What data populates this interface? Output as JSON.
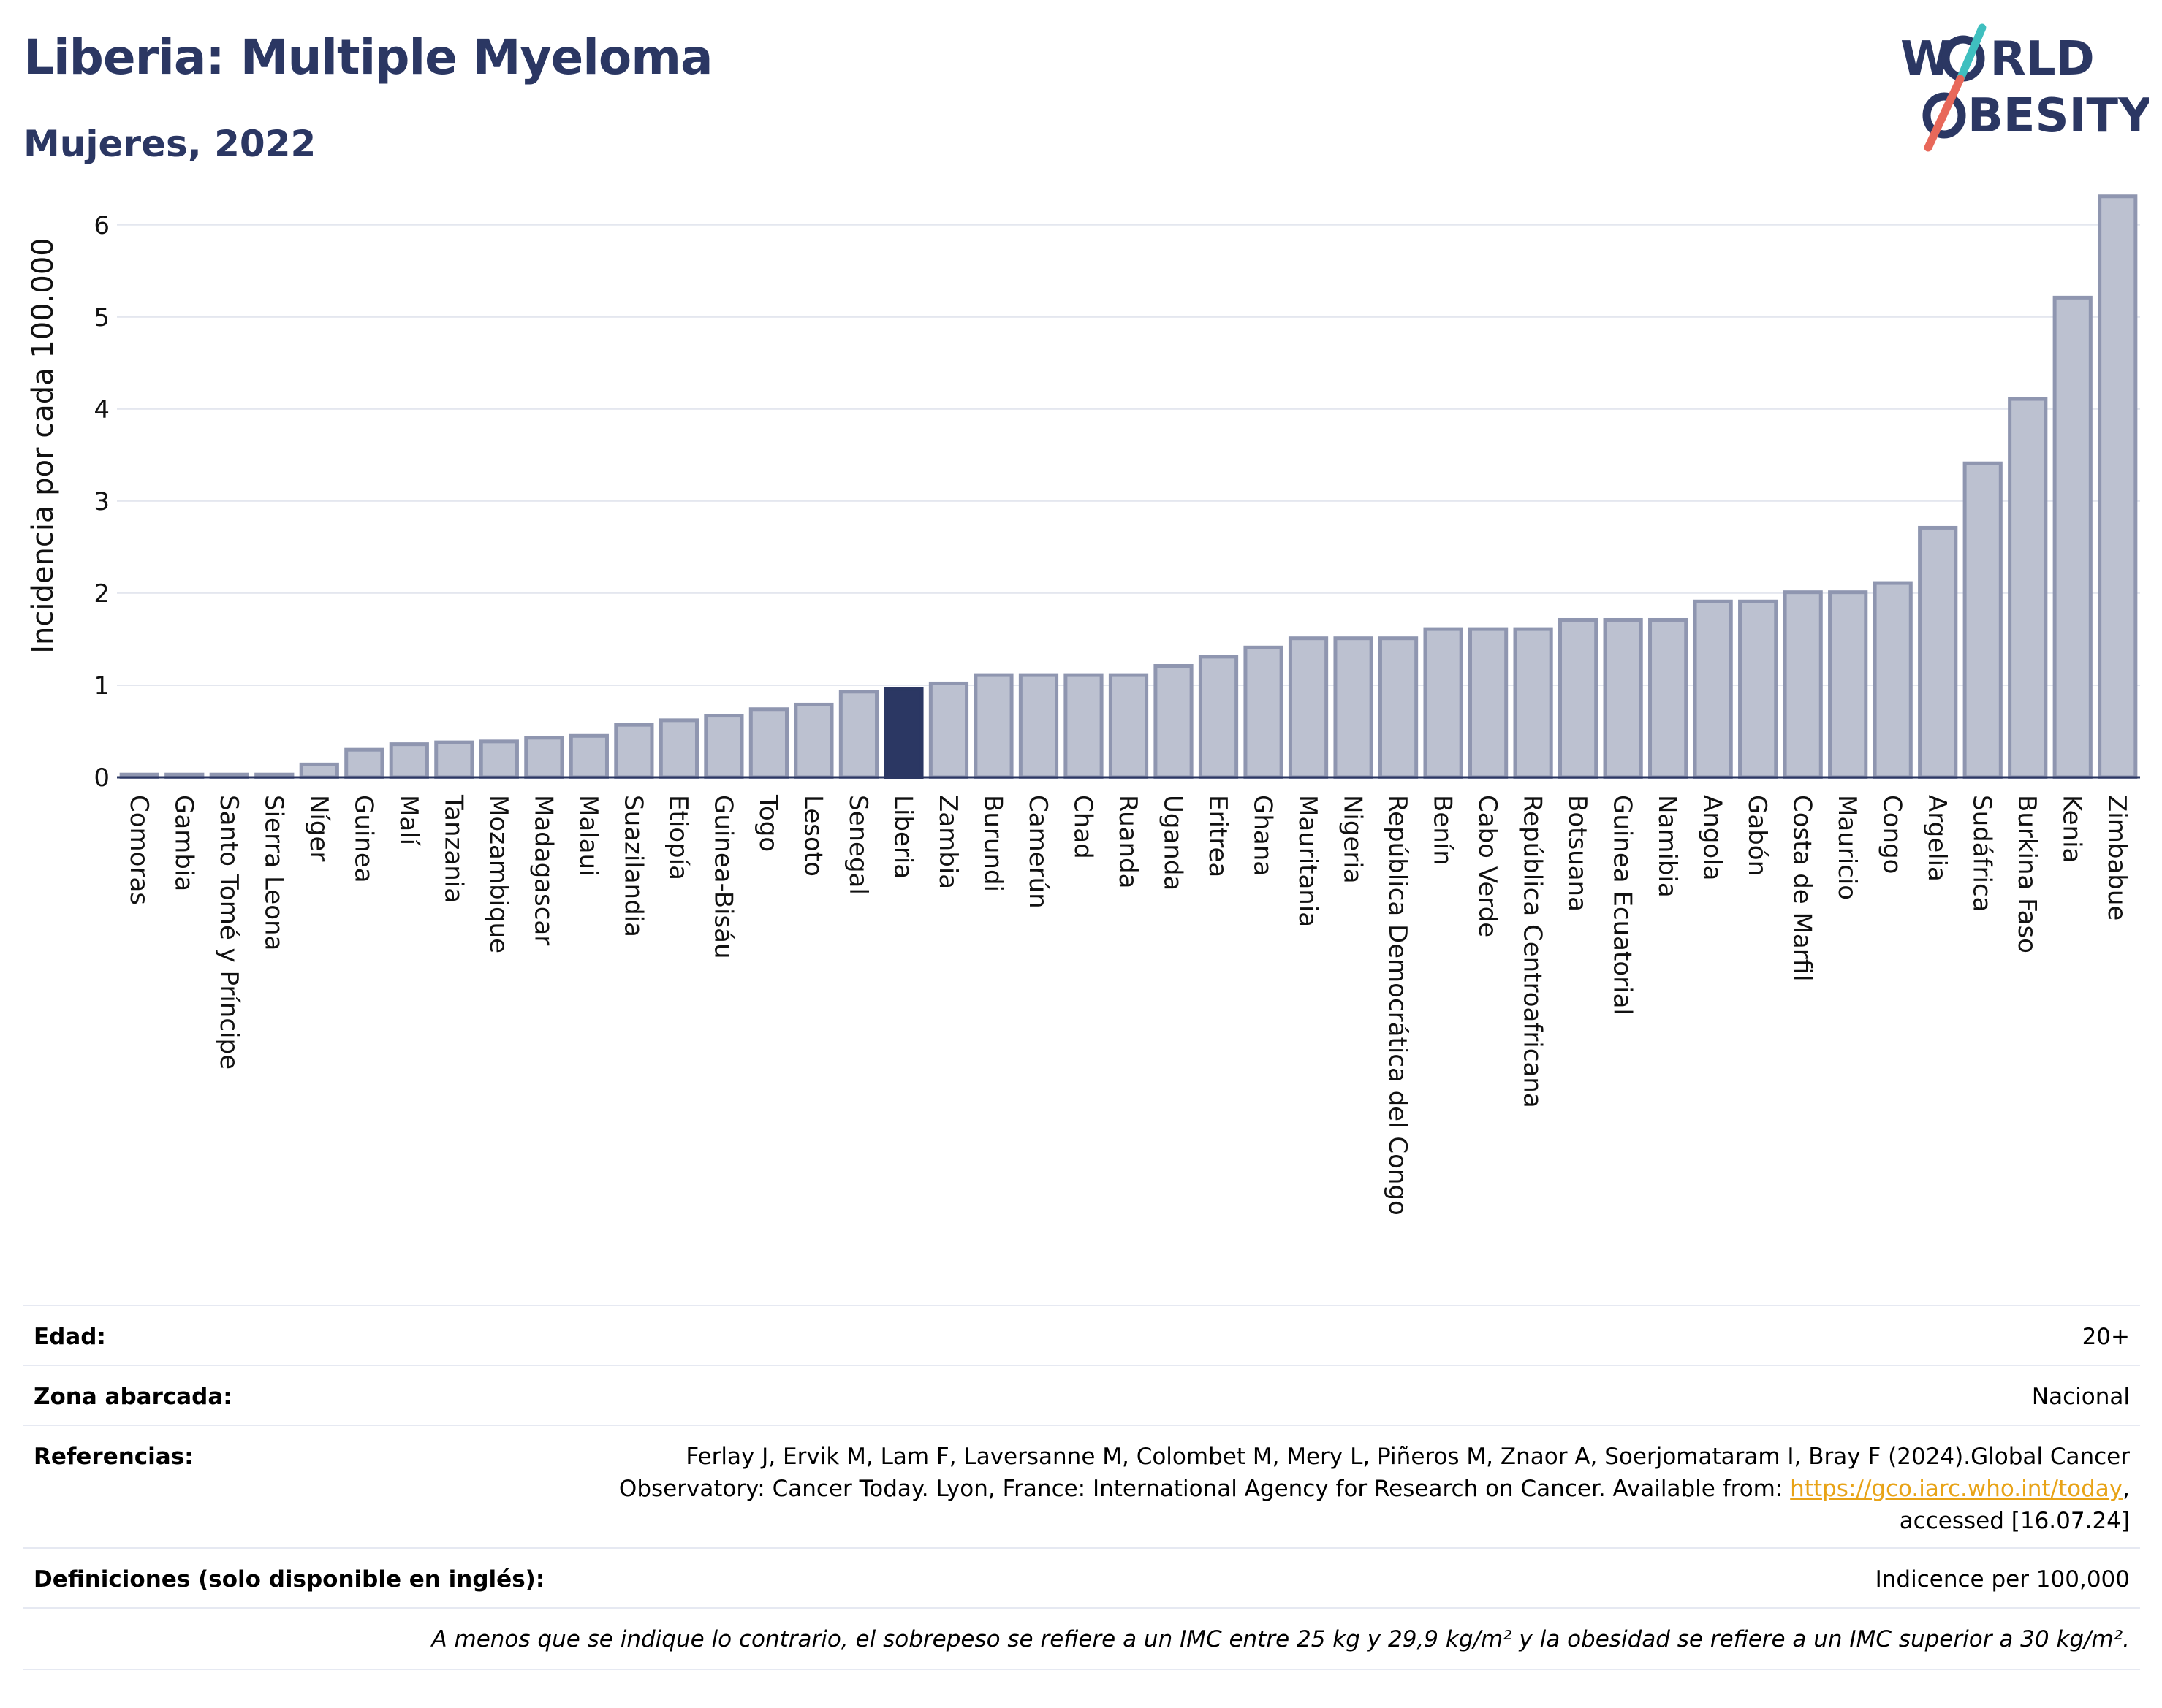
{
  "header": {
    "title": "Liberia: Multiple Myeloma",
    "subtitle": "Mujeres, 2022"
  },
  "logo": {
    "line1_a": "W",
    "line1_b": "RLD",
    "line2_b": "BESITY",
    "colors": {
      "text": "#2b3763",
      "slash_top": "#3fbfbf",
      "slash_bottom": "#e8685a"
    }
  },
  "chart_data": {
    "type": "bar",
    "ylabel": "Incidencia por cada 100.000",
    "xlabel": "",
    "ylim": [
      0,
      6.3
    ],
    "yticks": [
      0,
      1,
      2,
      3,
      4,
      5,
      6
    ],
    "grid": true,
    "highlight": "Liberia",
    "colors": {
      "bar": "#bcc1d0",
      "bar_edge": "#8f96b0",
      "highlight": "#2b3763"
    },
    "categories": [
      "Comoras",
      "Gambia",
      "Santo Tomé y Príncipe",
      "Sierra Leona",
      "Níger",
      "Guinea",
      "Malí",
      "Tanzania",
      "Mozambique",
      "Madagascar",
      "Malaui",
      "Suazilandia",
      "Etiopía",
      "Guinea-Bisáu",
      "Togo",
      "Lesoto",
      "Senegal",
      "Liberia",
      "Zambia",
      "Burundi",
      "Camerún",
      "Chad",
      "Ruanda",
      "Uganda",
      "Eritrea",
      "Ghana",
      "Mauritania",
      "Nigeria",
      "República Democrática del Congo",
      "Benín",
      "Cabo Verde",
      "República Centroafricana",
      "Botsuana",
      "Guinea Ecuatorial",
      "Namibia",
      "Angola",
      "Gabón",
      "Costa de Marfil",
      "Mauricio",
      "Congo",
      "Argelia",
      "Sudáfrica",
      "Burkina Faso",
      "Kenia",
      "Zimbabue"
    ],
    "values": [
      0.03,
      0.03,
      0.03,
      0.03,
      0.14,
      0.3,
      0.36,
      0.38,
      0.39,
      0.43,
      0.45,
      0.57,
      0.62,
      0.67,
      0.74,
      0.79,
      0.93,
      0.96,
      1.02,
      1.11,
      1.11,
      1.11,
      1.11,
      1.21,
      1.31,
      1.41,
      1.51,
      1.51,
      1.51,
      1.61,
      1.61,
      1.61,
      1.71,
      1.71,
      1.71,
      1.91,
      1.91,
      2.01,
      2.01,
      2.11,
      2.71,
      3.41,
      4.11,
      5.21,
      6.31
    ]
  },
  "meta": {
    "age_label": "Edad:",
    "age_value": "20+",
    "area_label": "Zona abarcada:",
    "area_value": "Nacional",
    "refs_label": "Referencias:",
    "refs_line1": "Ferlay J, Ervik M, Lam F, Laversanne M, Colombet M, Mery L, Piñeros M, Znaor A, Soerjomataram I, Bray F (2024).Global Cancer",
    "refs_line2": "Observatory: Cancer Today. Lyon, France: International Agency for Research on Cancer. Available from: ",
    "refs_link": "https://gco.iarc.who.int/today",
    "refs_line2_end": ",",
    "refs_line3": "accessed [16.07.24]",
    "defs_label": "Definiciones (solo disponible en inglés):",
    "defs_value": "Indicence per 100,000",
    "footnote": "A menos que se indique lo contrario, el sobrepeso se refiere a un IMC entre 25 kg y 29,9 kg/m² y la obesidad se refiere a un IMC superior a 30 kg/m²."
  }
}
